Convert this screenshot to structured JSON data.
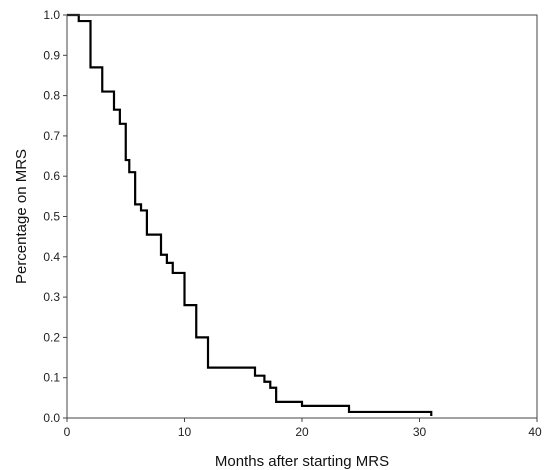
{
  "chart_data": {
    "type": "line",
    "step": true,
    "xlabel": "Months after starting MRS",
    "ylabel": "Percentage on MRS",
    "xlim": [
      0,
      40
    ],
    "ylim": [
      0,
      1.0
    ],
    "xticks": [
      0,
      10,
      20,
      30,
      40
    ],
    "xtick_labels": [
      "0",
      "10",
      "20",
      "30",
      "40"
    ],
    "yticks": [
      0,
      0.1,
      0.2,
      0.3,
      0.4,
      0.5,
      0.6,
      0.7,
      0.8,
      0.9,
      1.0
    ],
    "ytick_labels": [
      "0.0",
      "0.1",
      "0.2",
      "0.3",
      "0.4",
      "0.5",
      "0.6",
      "0.7",
      "0.8",
      "0.9",
      "1.0"
    ],
    "grid": false,
    "series": [
      {
        "color": "#000000",
        "x": [
          0,
          1,
          2,
          3,
          4,
          4.5,
          5,
          5.3,
          5.8,
          6.3,
          6.8,
          8,
          8.5,
          9,
          10,
          11,
          12,
          16,
          16.8,
          17.3,
          17.8,
          20,
          24,
          31
        ],
        "y": [
          1.0,
          0.985,
          0.87,
          0.81,
          0.765,
          0.73,
          0.64,
          0.61,
          0.53,
          0.515,
          0.455,
          0.405,
          0.385,
          0.36,
          0.28,
          0.2,
          0.125,
          0.105,
          0.09,
          0.075,
          0.04,
          0.03,
          0.015,
          0.005
        ]
      }
    ]
  }
}
